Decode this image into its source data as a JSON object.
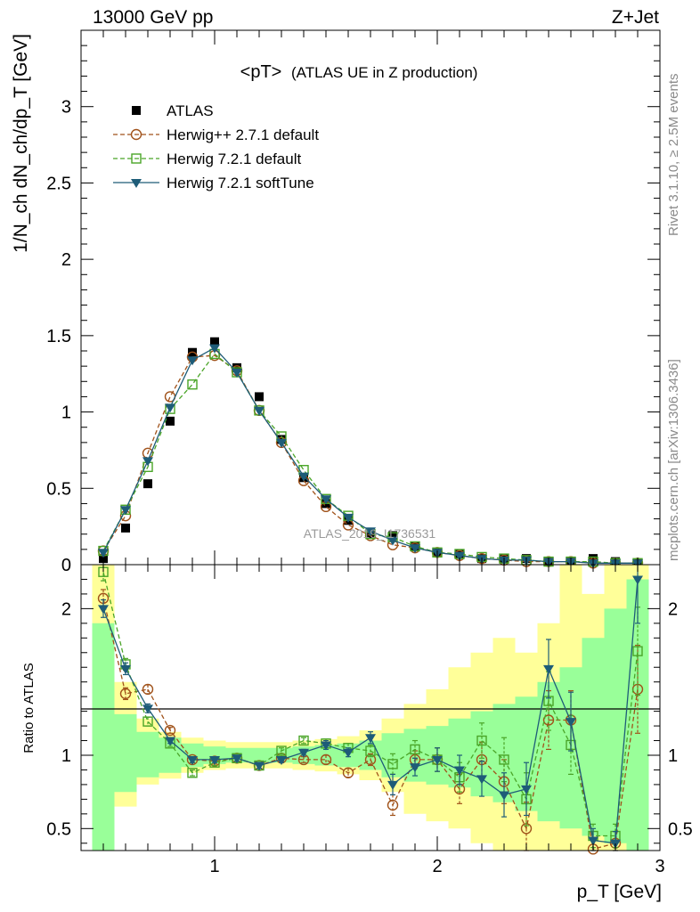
{
  "header": {
    "energy": "13000 GeV pp",
    "process": "Z+Jet",
    "side_rivet": "Rivet 3.1.10, ≥ 2.5M events",
    "side_mcplots": "mcplots.cern.ch [arXiv:1306.3436]",
    "watermark": "ATLAS_2019_I1736531"
  },
  "colors": {
    "atlas": "#000000",
    "herwigpp": "#a0521a",
    "herwig721": "#4aa528",
    "softtune": "#1e5c78",
    "band_inner": "#99ff99",
    "band_outer": "#ffff99"
  },
  "chart_data": [
    {
      "type": "line",
      "title": "<pT>",
      "subtitle": "(ATLAS UE in Z production)",
      "ylabel": "1/N_ch dN_ch/dp_T [GeV]",
      "xlim": [
        0.4,
        3.0
      ],
      "ylim": [
        0,
        3.5
      ],
      "yticks": [
        "0",
        "0.5",
        "1",
        "1.5",
        "2",
        "2.5",
        "3"
      ],
      "legend_position": "top-left",
      "x": [
        0.5,
        0.6,
        0.7,
        0.8,
        0.9,
        1.0,
        1.1,
        1.2,
        1.3,
        1.4,
        1.5,
        1.6,
        1.7,
        1.8,
        1.9,
        2.0,
        2.1,
        2.2,
        2.3,
        2.4,
        2.5,
        2.6,
        2.7,
        2.8,
        2.9
      ],
      "series": [
        {
          "name": "ATLAS",
          "style": "data",
          "values": [
            0.04,
            0.24,
            0.53,
            0.94,
            1.39,
            1.46,
            1.29,
            1.1,
            0.82,
            0.57,
            0.4,
            0.29,
            0.2,
            0.19,
            0.12,
            0.08,
            0.07,
            0.04,
            0.04,
            0.04,
            0.02,
            0.02,
            0.04,
            0.02,
            0.01
          ]
        },
        {
          "name": "Herwig++ 2.7.1 default",
          "style": "circle",
          "values": [
            0.09,
            0.32,
            0.73,
            1.1,
            1.36,
            1.37,
            1.27,
            1.01,
            0.8,
            0.55,
            0.38,
            0.26,
            0.19,
            0.13,
            0.11,
            0.08,
            0.06,
            0.04,
            0.03,
            0.02,
            0.02,
            0.02,
            0.01,
            0.01,
            0.01
          ]
        },
        {
          "name": "Herwig 7.2.1 default",
          "style": "square",
          "values": [
            0.09,
            0.36,
            0.64,
            1.02,
            1.18,
            1.38,
            1.26,
            1.01,
            0.84,
            0.62,
            0.43,
            0.32,
            0.2,
            0.18,
            0.12,
            0.08,
            0.07,
            0.05,
            0.04,
            0.03,
            0.02,
            0.02,
            0.02,
            0.01,
            0.01
          ]
        },
        {
          "name": "Herwig 7.2.1 softTune",
          "style": "triangle",
          "values": [
            0.08,
            0.36,
            0.68,
            1.03,
            1.34,
            1.42,
            1.26,
            1.01,
            0.8,
            0.58,
            0.43,
            0.31,
            0.22,
            0.16,
            0.11,
            0.08,
            0.06,
            0.04,
            0.03,
            0.03,
            0.02,
            0.02,
            0.01,
            0.01,
            0.01
          ]
        }
      ]
    },
    {
      "type": "line",
      "ylabel": "Ratio to ATLAS",
      "xlabel": "p_T [GeV]",
      "xlim": [
        0.4,
        3.0
      ],
      "ylim": [
        0.35,
        2.3
      ],
      "xticks": [
        "1",
        "2",
        "3"
      ],
      "yticks": [
        "0.5",
        "1",
        "2"
      ],
      "x": [
        0.5,
        0.6,
        0.7,
        0.8,
        0.9,
        1.0,
        1.1,
        1.2,
        1.3,
        1.4,
        1.5,
        1.6,
        1.7,
        1.8,
        1.9,
        2.0,
        2.1,
        2.2,
        2.3,
        2.4,
        2.5,
        2.6,
        2.7,
        2.8,
        2.9
      ],
      "band_inner_low": [
        0.35,
        0.75,
        0.85,
        0.88,
        0.92,
        0.94,
        0.95,
        0.95,
        0.95,
        0.94,
        0.93,
        0.92,
        0.9,
        0.85,
        0.82,
        0.8,
        0.78,
        0.72,
        0.68,
        0.62,
        0.55,
        0.5,
        0.45,
        0.4,
        0.35
      ],
      "band_inner_high": [
        1.9,
        1.28,
        1.16,
        1.12,
        1.08,
        1.06,
        1.05,
        1.05,
        1.05,
        1.06,
        1.07,
        1.08,
        1.1,
        1.15,
        1.18,
        1.2,
        1.25,
        1.3,
        1.35,
        1.4,
        1.5,
        1.6,
        1.8,
        2.0,
        2.2
      ],
      "band_outer_low": [
        0.35,
        0.65,
        0.8,
        0.84,
        0.88,
        0.9,
        0.91,
        0.91,
        0.91,
        0.9,
        0.89,
        0.87,
        0.83,
        0.75,
        0.6,
        0.55,
        0.5,
        0.4,
        0.35,
        0.35,
        0.35,
        0.35,
        0.35,
        0.35,
        0.35
      ],
      "band_outer_high": [
        2.3,
        1.5,
        1.25,
        1.16,
        1.12,
        1.1,
        1.09,
        1.09,
        1.09,
        1.1,
        1.11,
        1.13,
        1.17,
        1.25,
        1.35,
        1.45,
        1.6,
        1.7,
        1.8,
        1.7,
        1.9,
        2.3,
        2.1,
        2.3,
        2.3
      ],
      "series": [
        {
          "name": "Herwig++ 2.7.1 default",
          "style": "circle",
          "values": [
            2.07,
            1.42,
            1.45,
            1.17,
            0.97,
            0.96,
            0.98,
            0.93,
            0.98,
            0.97,
            0.97,
            0.88,
            0.97,
            0.66,
            0.97,
            0.97,
            0.77,
            0.97,
            0.82,
            0.5,
            1.24,
            1.24,
            0.36,
            0.4,
            1.45
          ],
          "errors": [
            0.06,
            0.04,
            0.03,
            0.02,
            0.02,
            0.02,
            0.02,
            0.02,
            0.02,
            0.02,
            0.03,
            0.03,
            0.04,
            0.07,
            0.06,
            0.08,
            0.1,
            0.12,
            0.15,
            0.18,
            0.2,
            0.2,
            0.08,
            0.08,
            0.3
          ]
        },
        {
          "name": "Herwig 7.2.1 default",
          "style": "square",
          "values": [
            2.25,
            1.62,
            1.23,
            1.08,
            0.88,
            0.95,
            0.98,
            0.93,
            1.03,
            1.1,
            1.08,
            1.05,
            1.03,
            0.94,
            1.04,
            0.97,
            0.85,
            1.1,
            0.97,
            0.7,
            1.37,
            1.07,
            0.45,
            0.45,
            1.71
          ],
          "errors": [
            0.06,
            0.04,
            0.03,
            0.02,
            0.02,
            0.02,
            0.02,
            0.02,
            0.02,
            0.02,
            0.03,
            0.03,
            0.04,
            0.07,
            0.06,
            0.08,
            0.1,
            0.12,
            0.15,
            0.18,
            0.2,
            0.2,
            0.08,
            0.08,
            0.3
          ]
        },
        {
          "name": "Herwig 7.2.1 softTune",
          "style": "triangle",
          "values": [
            2.0,
            1.59,
            1.32,
            1.1,
            0.97,
            0.97,
            0.98,
            0.93,
            0.97,
            1.02,
            1.07,
            1.02,
            1.12,
            0.8,
            0.92,
            0.97,
            0.9,
            0.84,
            0.73,
            0.77,
            1.59,
            1.23,
            0.42,
            0.4,
            2.2
          ],
          "errors": [
            0.06,
            0.04,
            0.03,
            0.02,
            0.02,
            0.02,
            0.02,
            0.02,
            0.02,
            0.02,
            0.03,
            0.03,
            0.04,
            0.07,
            0.06,
            0.08,
            0.1,
            0.12,
            0.15,
            0.18,
            0.2,
            0.2,
            0.08,
            0.08,
            0.3
          ]
        }
      ]
    }
  ]
}
